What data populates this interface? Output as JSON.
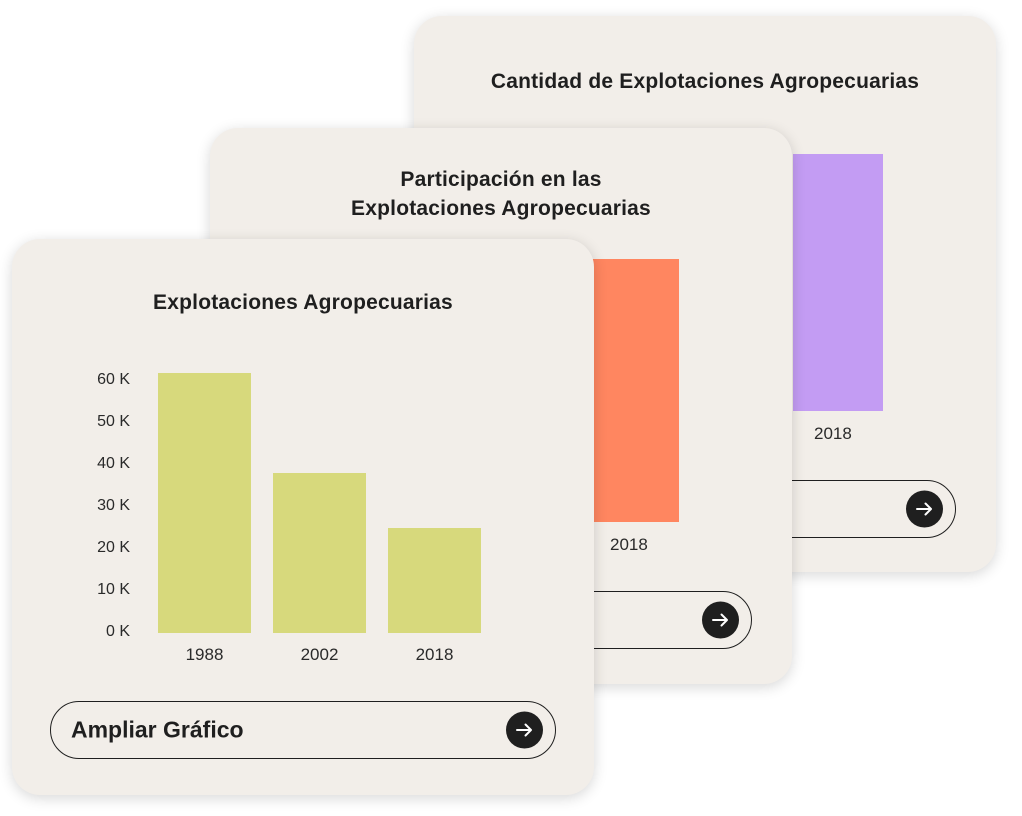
{
  "colors": {
    "card_bg": "#f2eee9",
    "front_bar": "#d7d97c",
    "mid_bar": "#ff8660",
    "back_bar": "#c39cf3",
    "text": "#1f1f1f"
  },
  "back_card": {
    "title": "Cantidad de Explotaciones Agropecuarias",
    "visible_category": "2018"
  },
  "mid_card": {
    "title_line1": "Participación en las",
    "title_line2": "Explotaciones Agropecuarias",
    "visible_category": "2018"
  },
  "front_card": {
    "title": "Explotaciones Agropecuarias",
    "button_label": "Ampliar Gráfico",
    "button_icon": "arrow-right-icon"
  },
  "chart_data": {
    "type": "bar",
    "title": "Explotaciones Agropecuarias",
    "categories": [
      "1988",
      "2002",
      "2018"
    ],
    "values": [
      62000,
      38000,
      25000
    ],
    "ylim": [
      0,
      60000
    ],
    "y_ticks": [
      "0 K",
      "10 K",
      "20 K",
      "30 K",
      "40 K",
      "50 K",
      "60 K"
    ],
    "y_tick_values": [
      0,
      10000,
      20000,
      30000,
      40000,
      50000,
      60000
    ],
    "xlabel": "",
    "ylabel": "",
    "grid": false
  }
}
